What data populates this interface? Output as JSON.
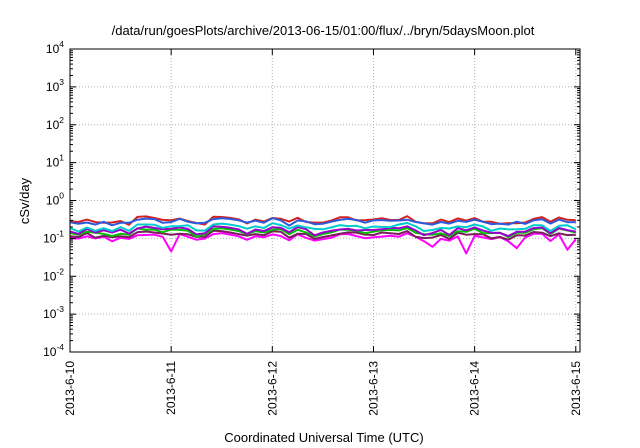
{
  "chart_data": {
    "type": "line",
    "title": "/data/run/goesPlots/archive/2013-06-15/01:00/flux/../bryn/5daysMoon.plot",
    "xlabel": "Coordinated Universal Time (UTC)",
    "ylabel": "cSv/day",
    "yscale": "log",
    "ylim": [
      0.0001,
      10000
    ],
    "y_ticks": [
      {
        "base": "10",
        "exp": "-4"
      },
      {
        "base": "10",
        "exp": "-3"
      },
      {
        "base": "10",
        "exp": "-2"
      },
      {
        "base": "10",
        "exp": "-1"
      },
      {
        "base": "10",
        "exp": "0"
      },
      {
        "base": "10",
        "exp": "1"
      },
      {
        "base": "10",
        "exp": "2"
      },
      {
        "base": "10",
        "exp": "3"
      },
      {
        "base": "10",
        "exp": "4"
      }
    ],
    "x_ticks": [
      "2013-6-10",
      "2013-6-11",
      "2013-6-12",
      "2013-6-13",
      "2013-6-14",
      "2013-6-15"
    ],
    "xlim": [
      "2013-06-10T00:00",
      "2013-06-15T01:00"
    ],
    "grid": true,
    "series_sampling_hours": 2,
    "series": [
      {
        "color": "#ff00ff",
        "level": 0.11,
        "dips": [
          [
            "2013-06-11T00:00",
            0.045
          ],
          [
            "2013-06-13T14:00",
            0.06
          ],
          [
            "2013-06-13T22:00",
            0.04
          ],
          [
            "2013-06-14T10:00",
            0.055
          ],
          [
            "2013-06-14T22:00",
            0.05
          ]
        ]
      },
      {
        "color": "#7a1f5c",
        "level": 0.125,
        "dips": []
      },
      {
        "color": "#00c000",
        "level": 0.15,
        "dips": []
      },
      {
        "color": "#9900cc",
        "level": 0.165,
        "dips": []
      },
      {
        "color": "#00cccc",
        "level": 0.2,
        "dips": []
      },
      {
        "color": "#d42020",
        "level": 0.3,
        "dips": []
      },
      {
        "color": "#2a5bdc",
        "level": 0.28,
        "dips": []
      }
    ]
  }
}
